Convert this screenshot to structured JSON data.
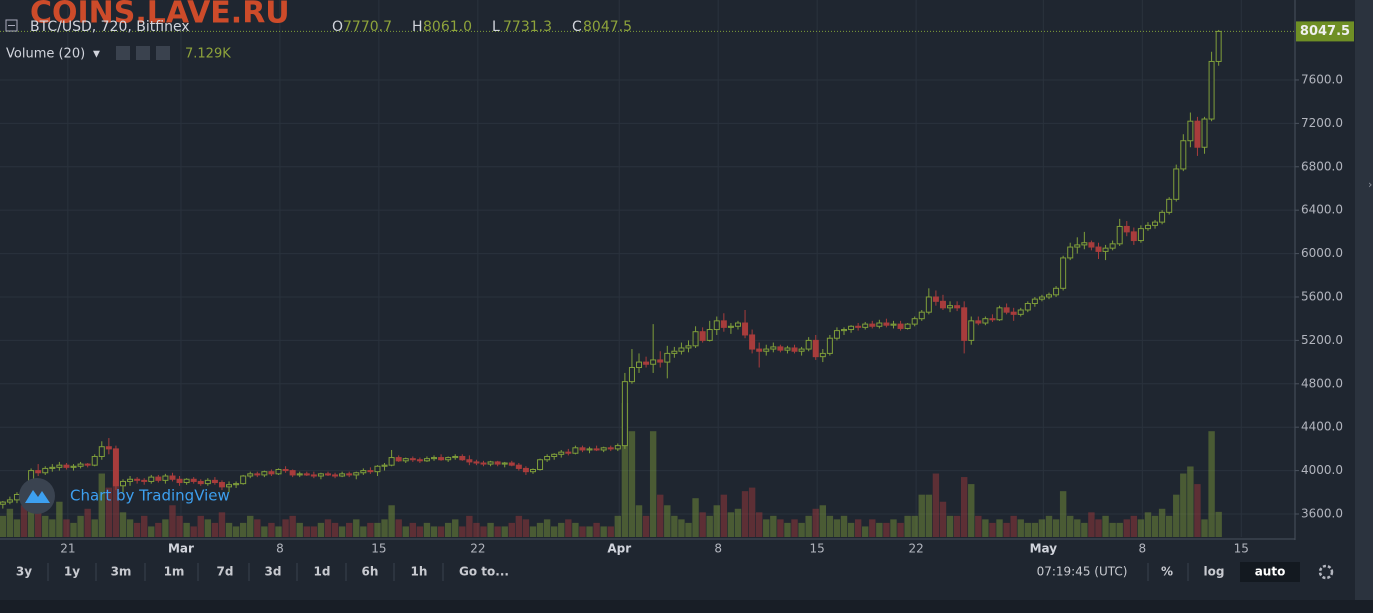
{
  "watermark": "COINS.LAVE.RU",
  "chart_data": {
    "type": "candlestick",
    "title": "BTC/USD, 720, Bitfinex",
    "header_values": [
      {
        "label": "O",
        "value": "7770.7"
      },
      {
        "label": "H",
        "value": "8061.0"
      },
      {
        "label": "L",
        "value": "7731.3"
      },
      {
        "label": "C",
        "value": "8047.5"
      }
    ],
    "volume_title": "Volume (20)",
    "volume_value_label": "7.129K",
    "last_price_label": "8047.5",
    "branding": "Chart by TradingView",
    "up_color": "#7f9e3a",
    "down_color": "#a83c3c",
    "grid": true,
    "xlim": [
      -0.4,
      182.8
    ],
    "xticks": [
      {
        "value": 9.2,
        "label": "21"
      },
      {
        "value": 25.2,
        "label": "Mar"
      },
      {
        "value": 39.2,
        "label": "8"
      },
      {
        "value": 53.2,
        "label": "15"
      },
      {
        "value": 67.2,
        "label": "22"
      },
      {
        "value": 87.2,
        "label": "Apr"
      },
      {
        "value": 101.2,
        "label": "8"
      },
      {
        "value": 115.2,
        "label": "15"
      },
      {
        "value": 129.2,
        "label": "22"
      },
      {
        "value": 147.2,
        "label": "May"
      },
      {
        "value": 161.2,
        "label": "8"
      },
      {
        "value": 175.2,
        "label": "15"
      }
    ],
    "ylim": [
      3388,
      8337
    ],
    "yticks": [
      {
        "value": 3600,
        "label": "3600.0"
      },
      {
        "value": 4000,
        "label": "4000.0"
      },
      {
        "value": 4400,
        "label": "4400.0"
      },
      {
        "value": 4800,
        "label": "4800.0"
      },
      {
        "value": 5200,
        "label": "5200.0"
      },
      {
        "value": 5600,
        "label": "5600.0"
      },
      {
        "value": 6000,
        "label": "6000.0"
      },
      {
        "value": 6400,
        "label": "6400.0"
      },
      {
        "value": 6800,
        "label": "6800.0"
      },
      {
        "value": 7200,
        "label": "7200.0"
      },
      {
        "value": 7600,
        "label": "7600.0"
      }
    ],
    "ohlc": [
      [
        3690,
        3720,
        3650,
        3710
      ],
      [
        3710,
        3760,
        3690,
        3730
      ],
      [
        3730,
        3800,
        3700,
        3780
      ],
      [
        3780,
        3820,
        3740,
        3760
      ],
      [
        3760,
        4020,
        3750,
        4000
      ],
      [
        4000,
        4060,
        3950,
        3980
      ],
      [
        3980,
        4040,
        3960,
        4020
      ],
      [
        4020,
        4060,
        3990,
        4030
      ],
      [
        4030,
        4080,
        4000,
        4050
      ],
      [
        4050,
        4070,
        4010,
        4030
      ],
      [
        4030,
        4060,
        4000,
        4040
      ],
      [
        4040,
        4080,
        4020,
        4060
      ],
      [
        4060,
        4070,
        4030,
        4050
      ],
      [
        4050,
        4150,
        4040,
        4130
      ],
      [
        4130,
        4270,
        4100,
        4220
      ],
      [
        4220,
        4300,
        4150,
        4200
      ],
      [
        4200,
        4230,
        3820,
        3860
      ],
      [
        3860,
        3920,
        3800,
        3900
      ],
      [
        3900,
        3950,
        3860,
        3920
      ],
      [
        3920,
        3940,
        3880,
        3910
      ],
      [
        3910,
        3930,
        3870,
        3900
      ],
      [
        3900,
        3960,
        3880,
        3940
      ],
      [
        3940,
        3960,
        3890,
        3910
      ],
      [
        3910,
        3970,
        3880,
        3950
      ],
      [
        3950,
        3980,
        3900,
        3920
      ],
      [
        3920,
        3950,
        3860,
        3890
      ],
      [
        3890,
        3930,
        3870,
        3920
      ],
      [
        3920,
        3940,
        3880,
        3900
      ],
      [
        3900,
        3920,
        3860,
        3880
      ],
      [
        3880,
        3930,
        3860,
        3910
      ],
      [
        3910,
        3940,
        3870,
        3890
      ],
      [
        3890,
        3910,
        3820,
        3850
      ],
      [
        3850,
        3900,
        3800,
        3870
      ],
      [
        3870,
        3900,
        3840,
        3880
      ],
      [
        3880,
        3960,
        3870,
        3950
      ],
      [
        3950,
        3990,
        3930,
        3970
      ],
      [
        3970,
        3990,
        3940,
        3960
      ],
      [
        3960,
        4000,
        3940,
        3990
      ],
      [
        3990,
        4010,
        3950,
        3970
      ],
      [
        3970,
        4020,
        3960,
        4010
      ],
      [
        4010,
        4040,
        3980,
        4000
      ],
      [
        4000,
        4010,
        3940,
        3960
      ],
      [
        3960,
        3990,
        3940,
        3970
      ],
      [
        3970,
        3990,
        3950,
        3960
      ],
      [
        3960,
        3990,
        3930,
        3950
      ],
      [
        3950,
        3980,
        3920,
        3970
      ],
      [
        3970,
        3990,
        3950,
        3960
      ],
      [
        3960,
        3980,
        3930,
        3950
      ],
      [
        3950,
        3990,
        3940,
        3970
      ],
      [
        3970,
        3990,
        3940,
        3960
      ],
      [
        3960,
        3990,
        3920,
        3980
      ],
      [
        3980,
        4020,
        3960,
        4000
      ],
      [
        4000,
        4030,
        3970,
        3990
      ],
      [
        3990,
        4050,
        3950,
        4040
      ],
      [
        4040,
        4070,
        4000,
        4050
      ],
      [
        4050,
        4190,
        4040,
        4120
      ],
      [
        4120,
        4140,
        4080,
        4090
      ],
      [
        4090,
        4120,
        4070,
        4110
      ],
      [
        4110,
        4130,
        4080,
        4100
      ],
      [
        4100,
        4120,
        4070,
        4090
      ],
      [
        4090,
        4130,
        4080,
        4110
      ],
      [
        4110,
        4140,
        4090,
        4120
      ],
      [
        4120,
        4150,
        4090,
        4100
      ],
      [
        4100,
        4130,
        4080,
        4120
      ],
      [
        4120,
        4150,
        4100,
        4130
      ],
      [
        4130,
        4150,
        4090,
        4100
      ],
      [
        4100,
        4140,
        4050,
        4080
      ],
      [
        4080,
        4100,
        4050,
        4070
      ],
      [
        4070,
        4090,
        4040,
        4060
      ],
      [
        4060,
        4090,
        4040,
        4080
      ],
      [
        4080,
        4090,
        4040,
        4060
      ],
      [
        4060,
        4080,
        4030,
        4070
      ],
      [
        4070,
        4090,
        4040,
        4050
      ],
      [
        4050,
        4070,
        4000,
        4020
      ],
      [
        4020,
        4040,
        3960,
        3990
      ],
      [
        3990,
        4020,
        3970,
        4010
      ],
      [
        4010,
        4110,
        4000,
        4100
      ],
      [
        4100,
        4150,
        4080,
        4130
      ],
      [
        4130,
        4160,
        4100,
        4150
      ],
      [
        4150,
        4190,
        4120,
        4170
      ],
      [
        4170,
        4200,
        4140,
        4160
      ],
      [
        4160,
        4230,
        4150,
        4210
      ],
      [
        4210,
        4230,
        4170,
        4190
      ],
      [
        4190,
        4220,
        4160,
        4200
      ],
      [
        4200,
        4230,
        4180,
        4190
      ],
      [
        4190,
        4220,
        4170,
        4210
      ],
      [
        4210,
        4230,
        4180,
        4200
      ],
      [
        4200,
        4250,
        4180,
        4230
      ],
      [
        4230,
        4900,
        4200,
        4820
      ],
      [
        4820,
        5120,
        4800,
        4950
      ],
      [
        4950,
        5080,
        4900,
        5000
      ],
      [
        5000,
        5050,
        4950,
        4980
      ],
      [
        4980,
        5350,
        4900,
        5020
      ],
      [
        5020,
        5100,
        4950,
        5000
      ],
      [
        5000,
        5150,
        4850,
        5080
      ],
      [
        5080,
        5140,
        5040,
        5100
      ],
      [
        5100,
        5180,
        5070,
        5130
      ],
      [
        5130,
        5200,
        5090,
        5150
      ],
      [
        5150,
        5330,
        5130,
        5280
      ],
      [
        5280,
        5320,
        5180,
        5200
      ],
      [
        5200,
        5380,
        5190,
        5300
      ],
      [
        5300,
        5420,
        5250,
        5380
      ],
      [
        5380,
        5450,
        5280,
        5320
      ],
      [
        5320,
        5360,
        5260,
        5330
      ],
      [
        5330,
        5380,
        5300,
        5360
      ],
      [
        5360,
        5480,
        5220,
        5250
      ],
      [
        5250,
        5300,
        5080,
        5120
      ],
      [
        5120,
        5180,
        4950,
        5100
      ],
      [
        5100,
        5160,
        5060,
        5120
      ],
      [
        5120,
        5180,
        5090,
        5140
      ],
      [
        5140,
        5160,
        5090,
        5110
      ],
      [
        5110,
        5150,
        5080,
        5130
      ],
      [
        5130,
        5160,
        5080,
        5100
      ],
      [
        5100,
        5140,
        5060,
        5120
      ],
      [
        5120,
        5230,
        5100,
        5200
      ],
      [
        5200,
        5250,
        5020,
        5050
      ],
      [
        5050,
        5120,
        5000,
        5080
      ],
      [
        5080,
        5250,
        5060,
        5220
      ],
      [
        5220,
        5320,
        5200,
        5290
      ],
      [
        5290,
        5320,
        5250,
        5300
      ],
      [
        5300,
        5340,
        5270,
        5330
      ],
      [
        5330,
        5360,
        5290,
        5320
      ],
      [
        5320,
        5370,
        5300,
        5350
      ],
      [
        5350,
        5380,
        5310,
        5330
      ],
      [
        5330,
        5390,
        5310,
        5360
      ],
      [
        5360,
        5400,
        5320,
        5340
      ],
      [
        5340,
        5380,
        5310,
        5350
      ],
      [
        5350,
        5380,
        5290,
        5310
      ],
      [
        5310,
        5360,
        5300,
        5350
      ],
      [
        5350,
        5420,
        5330,
        5400
      ],
      [
        5400,
        5480,
        5380,
        5460
      ],
      [
        5460,
        5680,
        5440,
        5600
      ],
      [
        5600,
        5660,
        5520,
        5560
      ],
      [
        5560,
        5620,
        5480,
        5500
      ],
      [
        5500,
        5560,
        5460,
        5520
      ],
      [
        5520,
        5560,
        5470,
        5500
      ],
      [
        5500,
        5560,
        5080,
        5200
      ],
      [
        5200,
        5420,
        5160,
        5380
      ],
      [
        5380,
        5420,
        5340,
        5360
      ],
      [
        5360,
        5420,
        5340,
        5400
      ],
      [
        5400,
        5440,
        5370,
        5390
      ],
      [
        5390,
        5520,
        5380,
        5500
      ],
      [
        5500,
        5540,
        5440,
        5460
      ],
      [
        5460,
        5500,
        5380,
        5440
      ],
      [
        5440,
        5500,
        5420,
        5480
      ],
      [
        5480,
        5560,
        5460,
        5540
      ],
      [
        5540,
        5600,
        5510,
        5580
      ],
      [
        5580,
        5620,
        5560,
        5600
      ],
      [
        5600,
        5640,
        5580,
        5620
      ],
      [
        5620,
        5700,
        5600,
        5680
      ],
      [
        5680,
        5980,
        5660,
        5960
      ],
      [
        5960,
        6100,
        5940,
        6060
      ],
      [
        6060,
        6150,
        6000,
        6080
      ],
      [
        6080,
        6200,
        6040,
        6100
      ],
      [
        6100,
        6120,
        6030,
        6060
      ],
      [
        6060,
        6100,
        5950,
        6020
      ],
      [
        6020,
        6080,
        5940,
        6050
      ],
      [
        6050,
        6120,
        6030,
        6090
      ],
      [
        6090,
        6320,
        6070,
        6250
      ],
      [
        6250,
        6300,
        6160,
        6200
      ],
      [
        6200,
        6240,
        6080,
        6120
      ],
      [
        6120,
        6260,
        6100,
        6230
      ],
      [
        6230,
        6290,
        6210,
        6260
      ],
      [
        6260,
        6310,
        6230,
        6290
      ],
      [
        6290,
        6400,
        6270,
        6380
      ],
      [
        6380,
        6520,
        6360,
        6500
      ],
      [
        6500,
        6820,
        6480,
        6780
      ],
      [
        6780,
        7100,
        6760,
        7040
      ],
      [
        7040,
        7300,
        6980,
        7220
      ],
      [
        7220,
        7260,
        6900,
        6980
      ],
      [
        6980,
        7260,
        6920,
        7240
      ],
      [
        7240,
        7860,
        7220,
        7770.7
      ],
      [
        7770.7,
        8061.0,
        7731.3,
        8047.5
      ]
    ],
    "volume": [
      6,
      8,
      5,
      9,
      12,
      7,
      6,
      5,
      10,
      5,
      4,
      6,
      8,
      5,
      18,
      14,
      16,
      7,
      5,
      4,
      6,
      3,
      4,
      5,
      9,
      6,
      4,
      3,
      6,
      5,
      4,
      7,
      4,
      3,
      4,
      6,
      5,
      3,
      4,
      3,
      5,
      6,
      4,
      3,
      3,
      4,
      5,
      4,
      3,
      4,
      5,
      3,
      4,
      4,
      5,
      9,
      5,
      3,
      4,
      3,
      4,
      3,
      3,
      4,
      5,
      3,
      6,
      4,
      3,
      4,
      3,
      3,
      4,
      6,
      5,
      3,
      4,
      5,
      3,
      4,
      5,
      4,
      3,
      3,
      4,
      3,
      3,
      6,
      38,
      30,
      9,
      6,
      30,
      12,
      9,
      6,
      5,
      4,
      11,
      7,
      6,
      9,
      12,
      7,
      8,
      13,
      14,
      7,
      5,
      6,
      5,
      4,
      5,
      4,
      6,
      8,
      9,
      6,
      5,
      6,
      4,
      5,
      3,
      5,
      4,
      4,
      5,
      4,
      6,
      6,
      12,
      12,
      18,
      10,
      6,
      6,
      17,
      15,
      6,
      5,
      4,
      5,
      4,
      6,
      5,
      4,
      4,
      5,
      6,
      5,
      13,
      6,
      5,
      4,
      7,
      5,
      6,
      4,
      4,
      5,
      6,
      5,
      7,
      6,
      8,
      6,
      12,
      18,
      20,
      15,
      5,
      30,
      7.129
    ]
  },
  "toolbar": {
    "ranges": [
      "3y",
      "1y",
      "3m",
      "1m",
      "7d",
      "3d",
      "1d",
      "6h",
      "1h"
    ],
    "goto": "Go to...",
    "time": "07:19:45 (UTC)",
    "percent": "%",
    "log": "log",
    "auto": "auto"
  }
}
